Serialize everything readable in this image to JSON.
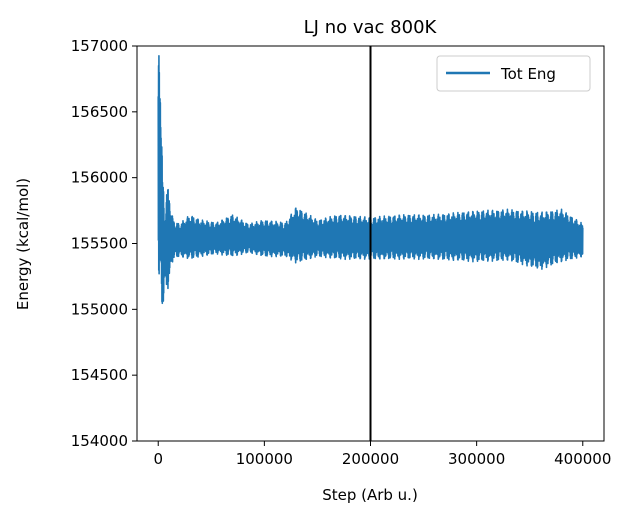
{
  "chart_data": {
    "type": "line",
    "title": "LJ no vac 800K",
    "xlabel": "Step (Arb u.)",
    "ylabel": "Energy (kcal/mol)",
    "xlim": [
      -20000,
      420000
    ],
    "ylim": [
      154000,
      157000
    ],
    "xticks": [
      0,
      100000,
      200000,
      300000,
      400000
    ],
    "xtick_labels": [
      "0",
      "100000",
      "200000",
      "300000",
      "400000"
    ],
    "yticks": [
      154000,
      154500,
      155000,
      155500,
      156000,
      156500,
      157000
    ],
    "ytick_labels": [
      "154000",
      "154500",
      "155000",
      "155500",
      "156000",
      "156500",
      "157000"
    ],
    "grid": false,
    "legend": "top-right",
    "vline": {
      "x": 200000,
      "color": "#000000"
    },
    "series": [
      {
        "name": "Tot Eng",
        "color": "#1f77b4",
        "envelope": [
          {
            "x": 0,
            "low": 155300,
            "high": 157000
          },
          {
            "x": 2000,
            "low": 155050,
            "high": 156900
          },
          {
            "x": 4000,
            "low": 154950,
            "high": 156100
          },
          {
            "x": 6000,
            "low": 155200,
            "high": 155700
          },
          {
            "x": 8000,
            "low": 155100,
            "high": 155950
          },
          {
            "x": 10000,
            "low": 155200,
            "high": 155900
          },
          {
            "x": 14000,
            "low": 155380,
            "high": 155680
          },
          {
            "x": 20000,
            "low": 155400,
            "high": 155650
          },
          {
            "x": 30000,
            "low": 155380,
            "high": 155720
          },
          {
            "x": 40000,
            "low": 155400,
            "high": 155680
          },
          {
            "x": 55000,
            "low": 155420,
            "high": 155660
          },
          {
            "x": 70000,
            "low": 155400,
            "high": 155720
          },
          {
            "x": 85000,
            "low": 155430,
            "high": 155650
          },
          {
            "x": 100000,
            "low": 155400,
            "high": 155680
          },
          {
            "x": 120000,
            "low": 155400,
            "high": 155660
          },
          {
            "x": 130000,
            "low": 155350,
            "high": 155780
          },
          {
            "x": 150000,
            "low": 155400,
            "high": 155680
          },
          {
            "x": 170000,
            "low": 155380,
            "high": 155720
          },
          {
            "x": 200000,
            "low": 155380,
            "high": 155700
          },
          {
            "x": 230000,
            "low": 155380,
            "high": 155720
          },
          {
            "x": 260000,
            "low": 155380,
            "high": 155720
          },
          {
            "x": 300000,
            "low": 155360,
            "high": 155750
          },
          {
            "x": 330000,
            "low": 155370,
            "high": 155760
          },
          {
            "x": 360000,
            "low": 155300,
            "high": 155740
          },
          {
            "x": 380000,
            "low": 155360,
            "high": 155760
          },
          {
            "x": 400000,
            "low": 155400,
            "high": 155650
          }
        ]
      }
    ]
  }
}
